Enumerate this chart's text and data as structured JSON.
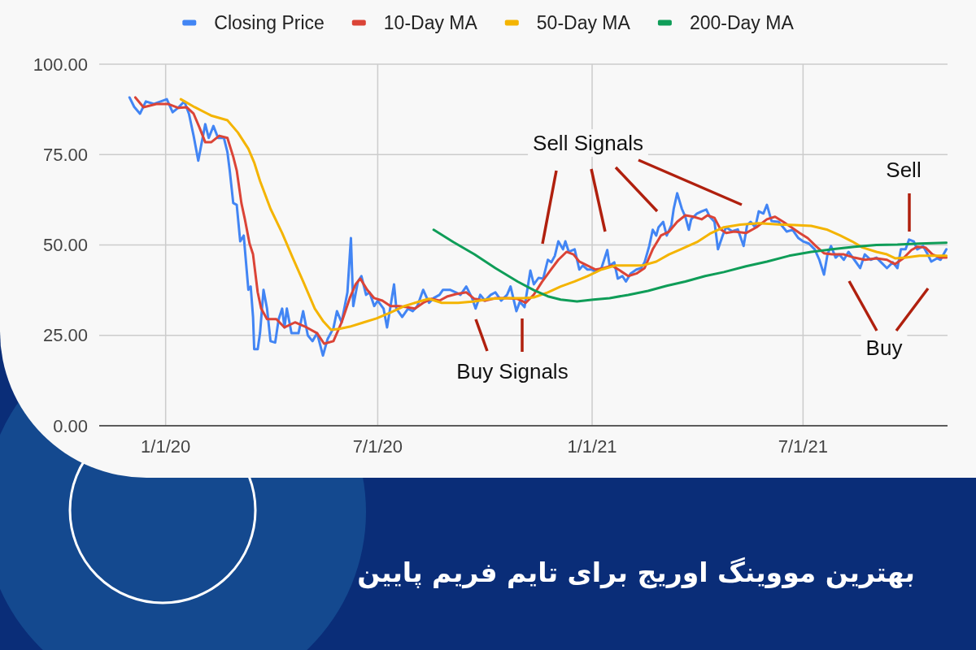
{
  "chart_data": {
    "type": "line",
    "title": "بهترین مووینگ اوریج برای تایم فریم پایین",
    "legend": "top",
    "grid": true,
    "xlim": [
      "2019-11-05",
      "2021-11-02"
    ],
    "xticks": [
      {
        "value": "2020-01-01",
        "label": "1/1/20"
      },
      {
        "value": "2020-07-01",
        "label": "7/1/20"
      },
      {
        "value": "2021-01-01",
        "label": "1/1/21"
      },
      {
        "value": "2021-07-01",
        "label": "7/1/21"
      }
    ],
    "ylim": [
      0,
      100
    ],
    "yticks": [
      {
        "value": 0,
        "label": "0.00"
      },
      {
        "value": 25,
        "label": "25.00"
      },
      {
        "value": 50,
        "label": "50.00"
      },
      {
        "value": 75,
        "label": "75.00"
      },
      {
        "value": 100,
        "label": "100.00"
      }
    ],
    "annotations": [
      "Sell Signals",
      "Buy Signals",
      "Sell",
      "Buy"
    ],
    "series": [
      {
        "name": "Closing Price",
        "color": "#4285f4",
        "x": [
          "2019-12-01",
          "2019-12-05",
          "2019-12-10",
          "2019-12-15",
          "2019-12-22",
          "2020-01-02",
          "2020-01-07",
          "2020-01-12",
          "2020-01-17",
          "2020-01-21",
          "2020-01-25",
          "2020-01-29",
          "2020-02-01",
          "2020-02-04",
          "2020-02-07",
          "2020-02-11",
          "2020-02-15",
          "2020-02-20",
          "2020-02-23",
          "2020-02-25",
          "2020-02-28",
          "2020-03-02",
          "2020-03-05",
          "2020-03-08",
          "2020-03-12",
          "2020-03-14",
          "2020-03-16",
          "2020-03-17",
          "2020-03-20",
          "2020-03-22",
          "2020-03-25",
          "2020-03-28",
          "2020-03-31",
          "2020-04-04",
          "2020-04-07",
          "2020-04-10",
          "2020-04-12",
          "2020-04-14",
          "2020-04-18",
          "2020-04-24",
          "2020-04-28",
          "2020-05-02",
          "2020-05-06",
          "2020-05-10",
          "2020-05-15",
          "2020-05-19",
          "2020-05-24",
          "2020-05-27",
          "2020-05-31",
          "2020-06-05",
          "2020-06-08",
          "2020-06-10",
          "2020-06-14",
          "2020-06-17",
          "2020-06-21",
          "2020-06-24",
          "2020-06-28",
          "2020-07-01",
          "2020-07-06",
          "2020-07-09",
          "2020-07-12",
          "2020-07-15",
          "2020-07-17",
          "2020-07-22",
          "2020-07-27",
          "2020-07-31",
          "2020-08-04",
          "2020-08-09",
          "2020-08-14",
          "2020-08-18",
          "2020-08-23",
          "2020-08-26",
          "2020-09-01",
          "2020-09-06",
          "2020-09-10",
          "2020-09-15",
          "2020-09-20",
          "2020-09-23",
          "2020-09-27",
          "2020-10-01",
          "2020-10-06",
          "2020-10-10",
          "2020-10-15",
          "2020-10-20",
          "2020-10-23",
          "2020-10-28",
          "2020-10-31",
          "2020-11-04",
          "2020-11-09",
          "2020-11-12",
          "2020-11-16",
          "2020-11-20",
          "2020-11-24",
          "2020-11-27",
          "2020-11-30",
          "2020-12-03",
          "2020-12-07",
          "2020-12-09",
          "2020-12-12",
          "2020-12-17",
          "2020-12-21",
          "2020-12-24",
          "2020-12-28",
          "2021-01-01",
          "2021-01-04",
          "2021-01-09",
          "2021-01-14",
          "2021-01-16",
          "2021-01-20",
          "2021-01-23",
          "2021-01-27",
          "2021-01-30",
          "2021-02-03",
          "2021-02-08",
          "2021-02-12",
          "2021-02-15",
          "2021-02-19",
          "2021-02-22",
          "2021-02-25",
          "2021-02-27",
          "2021-03-03",
          "2021-03-06",
          "2021-03-10",
          "2021-03-12",
          "2021-03-15",
          "2021-03-19",
          "2021-03-22",
          "2021-03-25",
          "2021-03-27",
          "2021-04-01",
          "2021-04-05",
          "2021-04-09",
          "2021-04-12",
          "2021-04-16",
          "2021-04-19",
          "2021-04-23",
          "2021-04-26",
          "2021-05-01",
          "2021-05-06",
          "2021-05-11",
          "2021-05-14",
          "2021-05-17",
          "2021-05-21",
          "2021-05-24",
          "2021-05-28",
          "2021-05-31",
          "2021-06-04",
          "2021-06-10",
          "2021-06-17",
          "2021-06-22",
          "2021-06-27",
          "2021-07-01",
          "2021-07-06",
          "2021-07-11",
          "2021-07-15",
          "2021-07-19",
          "2021-07-22",
          "2021-07-25",
          "2021-07-29",
          "2021-08-01",
          "2021-08-05",
          "2021-08-09",
          "2021-08-14",
          "2021-08-19",
          "2021-08-23",
          "2021-08-28",
          "2021-09-02",
          "2021-09-06",
          "2021-09-11",
          "2021-09-16",
          "2021-09-20",
          "2021-09-23",
          "2021-09-27",
          "2021-09-30",
          "2021-10-04",
          "2021-10-07",
          "2021-10-12",
          "2021-10-16",
          "2021-10-19",
          "2021-10-24",
          "2021-10-27",
          "2021-11-01"
        ],
        "values": [
          90.8,
          88.2,
          86.3,
          89.7,
          89.0,
          90.3,
          86.7,
          88.0,
          89.7,
          86.3,
          80.2,
          73.3,
          78.4,
          83.4,
          79.6,
          82.9,
          79.6,
          79.6,
          75.7,
          70.6,
          61.6,
          61.1,
          51.0,
          52.6,
          37.6,
          38.5,
          30.1,
          21.2,
          21.2,
          25.6,
          37.6,
          32.4,
          23.4,
          23.0,
          29.5,
          32.4,
          27.2,
          32.4,
          25.6,
          25.6,
          31.7,
          25.0,
          23.4,
          25.6,
          19.4,
          24.0,
          27.0,
          31.7,
          28.6,
          36.9,
          51.9,
          33.1,
          39.9,
          41.4,
          36.2,
          36.9,
          33.1,
          34.6,
          32.4,
          27.2,
          33.1,
          39.1,
          32.4,
          30.1,
          32.4,
          31.7,
          33.1,
          37.6,
          34.0,
          35.3,
          36.2,
          37.6,
          37.6,
          36.9,
          36.2,
          38.5,
          35.3,
          32.4,
          36.2,
          34.6,
          36.2,
          36.9,
          34.6,
          36.2,
          38.5,
          31.7,
          34.3,
          32.8,
          42.9,
          39.1,
          40.9,
          40.7,
          45.9,
          45.2,
          47.0,
          51.0,
          48.8,
          51.0,
          48.1,
          48.8,
          43.2,
          44.3,
          43.2,
          43.2,
          42.5,
          43.6,
          48.6,
          44.3,
          45.2,
          40.7,
          41.4,
          39.9,
          42.1,
          43.2,
          43.6,
          45.2,
          49.7,
          54.2,
          52.6,
          54.9,
          56.4,
          52.6,
          55.5,
          60.0,
          64.3,
          60.0,
          57.8,
          54.2,
          57.1,
          58.7,
          59.3,
          59.8,
          57.8,
          56.4,
          48.8,
          52.6,
          54.9,
          53.8,
          54.3,
          49.7,
          55.5,
          56.4,
          54.9,
          59.3,
          58.7,
          61.1,
          56.6,
          56.4,
          53.7,
          54.2,
          51.9,
          51.0,
          50.4,
          48.8,
          45.9,
          41.8,
          47.4,
          49.7,
          46.5,
          47.4,
          45.9,
          48.1,
          45.9,
          43.6,
          47.4,
          45.9,
          46.5,
          45.2,
          43.6,
          45.2,
          43.6,
          48.8,
          48.8,
          51.5,
          51.0,
          48.8,
          49.7,
          47.4,
          45.4,
          46.3,
          45.9,
          48.8
        ]
      },
      {
        "name": "10-Day MA",
        "color": "#db4437",
        "x": [
          "2019-12-06",
          "2019-12-13",
          "2019-12-24",
          "2020-01-03",
          "2020-01-12",
          "2020-01-19",
          "2020-01-25",
          "2020-01-30",
          "2020-02-04",
          "2020-02-09",
          "2020-02-16",
          "2020-02-23",
          "2020-02-28",
          "2020-03-02",
          "2020-03-06",
          "2020-03-09",
          "2020-03-13",
          "2020-03-16",
          "2020-03-20",
          "2020-03-23",
          "2020-03-28",
          "2020-04-05",
          "2020-04-12",
          "2020-04-21",
          "2020-05-01",
          "2020-05-10",
          "2020-05-16",
          "2020-05-24",
          "2020-05-31",
          "2020-06-07",
          "2020-06-12",
          "2020-06-16",
          "2020-06-22",
          "2020-06-28",
          "2020-07-05",
          "2020-07-12",
          "2020-07-19",
          "2020-07-26",
          "2020-08-02",
          "2020-08-09",
          "2020-08-16",
          "2020-08-23",
          "2020-08-30",
          "2020-09-06",
          "2020-09-15",
          "2020-09-22",
          "2020-10-01",
          "2020-10-10",
          "2020-10-20",
          "2020-10-29",
          "2020-11-05",
          "2020-11-12",
          "2020-11-19",
          "2020-11-26",
          "2020-12-03",
          "2020-12-10",
          "2020-12-16",
          "2020-12-21",
          "2020-12-28",
          "2021-01-04",
          "2021-01-11",
          "2021-01-18",
          "2021-01-25",
          "2021-02-01",
          "2021-02-08",
          "2021-02-15",
          "2021-02-22",
          "2021-03-01",
          "2021-03-08",
          "2021-03-15",
          "2021-03-22",
          "2021-03-29",
          "2021-04-05",
          "2021-04-10",
          "2021-04-16",
          "2021-04-21",
          "2021-04-26",
          "2021-05-03",
          "2021-05-13",
          "2021-05-22",
          "2021-05-31",
          "2021-06-07",
          "2021-06-14",
          "2021-06-21",
          "2021-06-28",
          "2021-07-05",
          "2021-07-12",
          "2021-07-19",
          "2021-07-26",
          "2021-08-05",
          "2021-08-14",
          "2021-08-23",
          "2021-09-02",
          "2021-09-11",
          "2021-09-18",
          "2021-09-25",
          "2021-10-02",
          "2021-10-07",
          "2021-10-14",
          "2021-10-20",
          "2021-10-27",
          "2021-11-01"
        ],
        "values": [
          90.8,
          88.1,
          89.0,
          89.0,
          87.9,
          88.1,
          86.3,
          82.5,
          78.4,
          78.4,
          80.2,
          79.6,
          74.4,
          70.6,
          61.6,
          57.1,
          50.4,
          47.4,
          36.9,
          32.4,
          29.5,
          29.5,
          27.2,
          28.6,
          27.2,
          25.6,
          22.7,
          23.4,
          28.6,
          35.3,
          39.1,
          40.7,
          37.6,
          35.3,
          34.6,
          33.1,
          33.1,
          32.8,
          32.4,
          34.0,
          35.1,
          34.6,
          35.8,
          36.4,
          36.9,
          35.1,
          34.6,
          35.3,
          35.3,
          35.1,
          34.0,
          36.3,
          39.8,
          42.9,
          45.9,
          48.1,
          47.4,
          45.4,
          44.3,
          43.2,
          43.6,
          44.3,
          42.9,
          41.4,
          42.1,
          43.6,
          48.8,
          52.6,
          53.7,
          56.4,
          58.2,
          57.8,
          57.1,
          58.2,
          57.5,
          54.4,
          53.3,
          53.7,
          53.3,
          54.9,
          57.1,
          57.8,
          56.4,
          54.9,
          53.3,
          51.9,
          49.7,
          47.7,
          47.4,
          47.4,
          46.5,
          45.9,
          46.3,
          45.9,
          44.7,
          46.3,
          48.6,
          49.5,
          49.3,
          47.4,
          46.5,
          46.5
        ]
      },
      {
        "name": "50-Day MA",
        "color": "#f4b400",
        "x": [
          "2020-01-14",
          "2020-01-26",
          "2020-02-09",
          "2020-02-23",
          "2020-03-03",
          "2020-03-12",
          "2020-03-17",
          "2020-03-22",
          "2020-03-31",
          "2020-04-10",
          "2020-04-19",
          "2020-04-28",
          "2020-05-08",
          "2020-05-15",
          "2020-05-22",
          "2020-05-29",
          "2020-06-07",
          "2020-06-19",
          "2020-06-30",
          "2020-07-12",
          "2020-07-24",
          "2020-08-04",
          "2020-08-14",
          "2020-08-25",
          "2020-09-08",
          "2020-09-22",
          "2020-10-06",
          "2020-10-20",
          "2020-11-03",
          "2020-11-12",
          "2020-11-24",
          "2020-12-05",
          "2020-12-17",
          "2020-12-28",
          "2021-01-09",
          "2021-01-21",
          "2021-02-01",
          "2021-02-13",
          "2021-02-25",
          "2021-03-08",
          "2021-03-18",
          "2021-04-01",
          "2021-04-12",
          "2021-04-24",
          "2021-05-08",
          "2021-05-24",
          "2021-06-10",
          "2021-06-24",
          "2021-07-08",
          "2021-07-22",
          "2021-08-02",
          "2021-08-12",
          "2021-08-21",
          "2021-09-02",
          "2021-09-11",
          "2021-09-18",
          "2021-09-27",
          "2021-10-09",
          "2021-10-23",
          "2021-11-01"
        ],
        "values": [
          90.3,
          88.1,
          85.8,
          84.5,
          81.1,
          76.6,
          72.8,
          67.7,
          60.0,
          53.3,
          46.5,
          39.9,
          32.4,
          29.0,
          26.5,
          26.8,
          27.4,
          28.6,
          29.7,
          31.3,
          33.1,
          34.2,
          35.1,
          34.0,
          34.0,
          34.4,
          35.1,
          35.3,
          35.3,
          35.5,
          36.9,
          38.5,
          39.9,
          41.4,
          43.2,
          44.3,
          44.3,
          44.3,
          45.4,
          47.4,
          48.8,
          50.8,
          53.1,
          54.9,
          55.6,
          56.0,
          55.7,
          55.5,
          55.3,
          54.2,
          52.6,
          51.0,
          49.3,
          48.1,
          47.4,
          46.3,
          46.5,
          47.0,
          47.0,
          47.0
        ]
      },
      {
        "name": "200-Day MA",
        "color": "#0f9d58",
        "x": [
          "2020-08-18",
          "2020-09-04",
          "2020-09-22",
          "2020-10-10",
          "2020-10-29",
          "2020-11-12",
          "2020-11-24",
          "2020-12-05",
          "2020-12-19",
          "2021-01-02",
          "2021-01-16",
          "2021-02-01",
          "2021-02-18",
          "2021-03-06",
          "2021-03-22",
          "2021-04-08",
          "2021-04-24",
          "2021-05-13",
          "2021-05-31",
          "2021-06-19",
          "2021-07-08",
          "2021-07-26",
          "2021-08-14",
          "2021-09-02",
          "2021-09-20",
          "2021-10-09",
          "2021-11-01"
        ],
        "values": [
          54.2,
          50.8,
          47.4,
          43.6,
          39.9,
          37.5,
          35.8,
          34.9,
          34.4,
          34.9,
          35.3,
          36.2,
          37.3,
          38.7,
          39.9,
          41.4,
          42.5,
          44.1,
          45.4,
          47.0,
          48.1,
          48.8,
          49.5,
          50.0,
          50.1,
          50.4,
          50.6
        ]
      }
    ]
  }
}
